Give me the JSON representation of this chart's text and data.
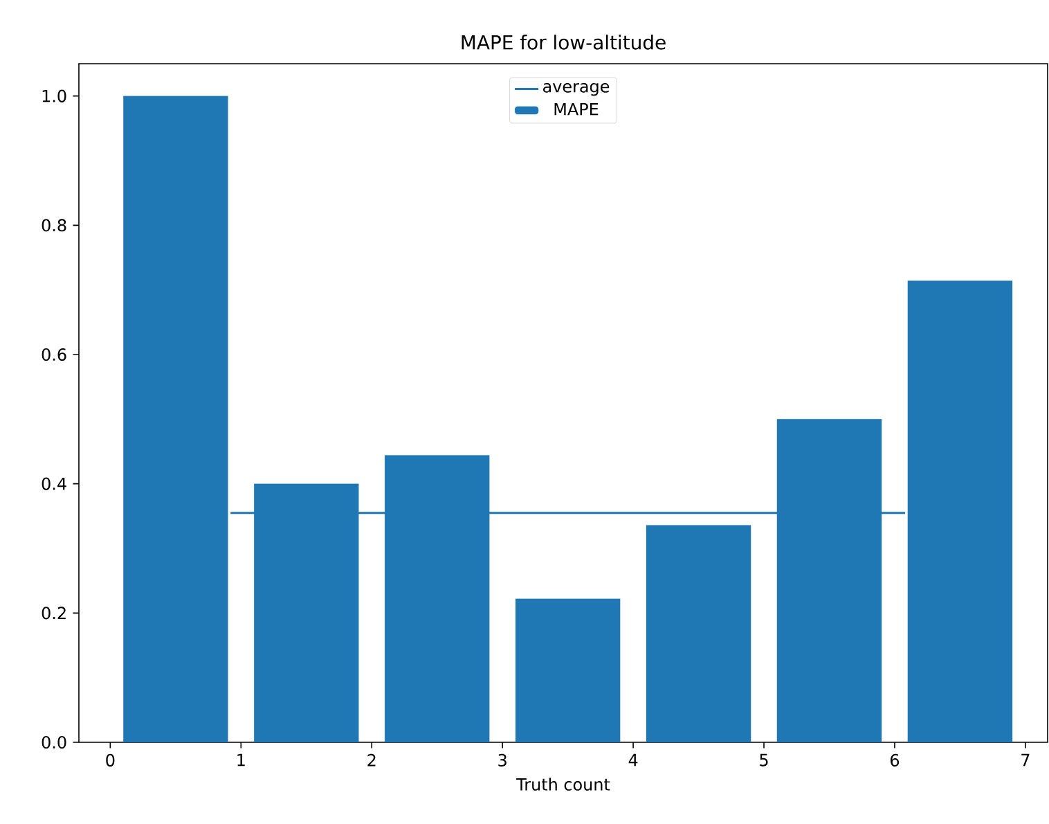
{
  "chart_data": {
    "type": "bar",
    "title": "MAPE for low-altitude",
    "xlabel": "Truth count",
    "x": [
      0.5,
      1.5,
      2.5,
      3.5,
      4.5,
      5.5,
      6.5
    ],
    "series": [
      {
        "name": "average",
        "type": "line",
        "color": "#1f77b4",
        "x": [
          0.92,
          6.08
        ],
        "values": [
          0.355,
          0.355
        ]
      },
      {
        "name": "MAPE",
        "color": "#1f77b4",
        "values": [
          1.0,
          0.4,
          0.444,
          0.222,
          0.336,
          0.5,
          0.714
        ]
      }
    ],
    "xlim": [
      -0.24,
      7.17
    ],
    "ylim": [
      0,
      1.05
    ],
    "xticks": [
      0,
      1,
      2,
      3,
      4,
      5,
      6,
      7
    ],
    "yticks": [
      {
        "value": 0,
        "label": "0.0"
      },
      {
        "value": 0.2,
        "label": "0.2"
      },
      {
        "value": 0.4,
        "label": "0.4"
      },
      {
        "value": 0.6,
        "label": "0.6"
      },
      {
        "value": 0.8,
        "label": "0.8"
      },
      {
        "value": 1.0,
        "label": "1.0"
      }
    ],
    "legend": "top",
    "grid": false
  }
}
